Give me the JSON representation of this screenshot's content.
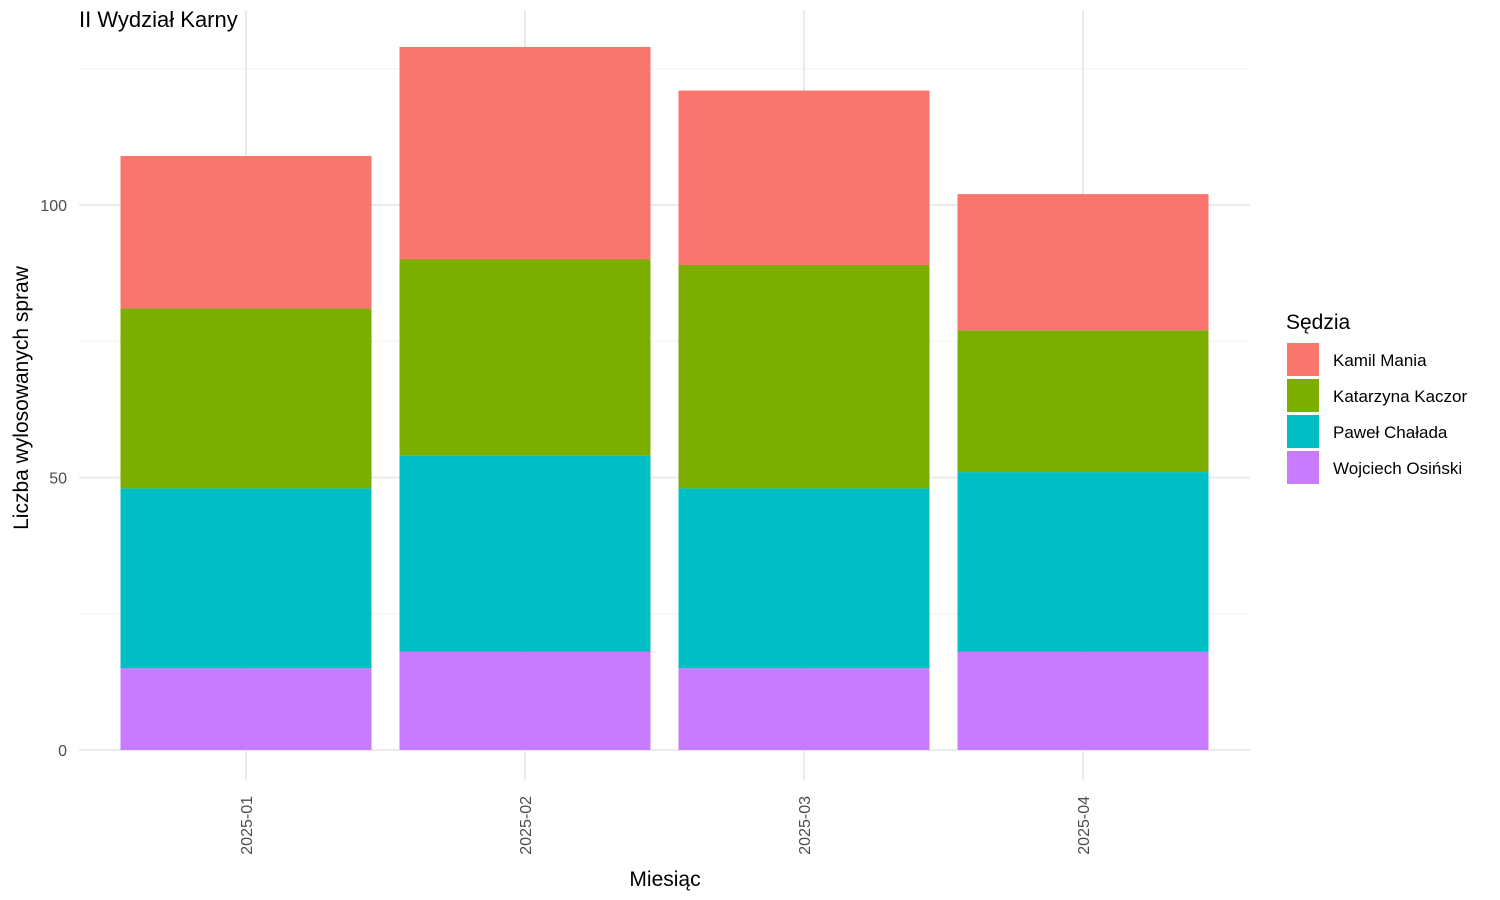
{
  "chart_data": {
    "type": "bar",
    "stacked": true,
    "title": "II Wydział Karny",
    "xlabel": "Miesiąc",
    "ylabel": "Liczba wylosowanych spraw",
    "categories": [
      "2025-01",
      "2025-02",
      "2025-03",
      "2025-04"
    ],
    "ylim": [
      0,
      130
    ],
    "yticks": [
      0,
      50,
      100
    ],
    "grid": true,
    "legend": {
      "title": "Sędzia",
      "placement": "right"
    },
    "series": [
      {
        "name": "Kamil Mania",
        "color": "#F8766D",
        "values": [
          28,
          39,
          32,
          25
        ]
      },
      {
        "name": "Katarzyna Kaczor",
        "color": "#7CAE00",
        "values": [
          33,
          36,
          41,
          26
        ]
      },
      {
        "name": "Paweł Chałada",
        "color": "#00BFC4",
        "values": [
          33,
          36,
          33,
          33
        ]
      },
      {
        "name": "Wojciech Osiński",
        "color": "#C77CFF",
        "values": [
          15,
          18,
          15,
          18
        ]
      }
    ]
  }
}
